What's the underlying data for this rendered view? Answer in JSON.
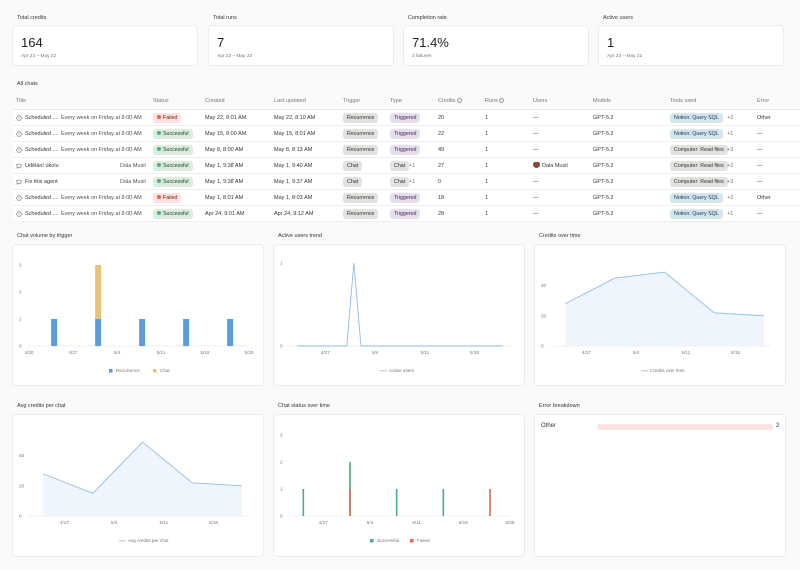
{
  "kpis": [
    {
      "label": "Total credits",
      "value": "164",
      "sub": "Apr 23 – May 22"
    },
    {
      "label": "Total runs",
      "value": "7",
      "sub": "Apr 23 – May 22"
    },
    {
      "label": "Completion rate",
      "value": "71.4%",
      "sub": "2 failures"
    },
    {
      "label": "Active users",
      "value": "1",
      "sub": "Apr 23 – May 22"
    }
  ],
  "table": {
    "section_title": "All chats",
    "headers": [
      "Title",
      "Status",
      "Created",
      "Last updated",
      "Trigger",
      "Type",
      "Credits",
      "Runs",
      "Users",
      "Models",
      "Tools used",
      "Error"
    ],
    "rows": [
      {
        "icon": "clock-icon",
        "title": "Scheduled ...",
        "desc": "Every week on Friday at 8:00 AM",
        "status": "Failed",
        "status_kind": "fail",
        "created": "May 22, 8:01 AM",
        "updated": "May 22, 8:10 AM",
        "trigger": "Recurrence",
        "type": "Triggered",
        "type_extra": "",
        "credits": "20",
        "runs": "1",
        "users": "—",
        "model": "GPT-5.2",
        "tool": "Notion: Query SQL",
        "tool_kind": "notion",
        "tool_extra": "+2",
        "error": "Other"
      },
      {
        "icon": "clock-icon",
        "title": "Scheduled ...",
        "desc": "Every week on Friday at 8:00 AM",
        "status": "Successful",
        "status_kind": "ok",
        "created": "May 15, 8:00 AM",
        "updated": "May 15, 8:01 AM",
        "trigger": "Recurrence",
        "type": "Triggered",
        "type_extra": "",
        "credits": "22",
        "runs": "1",
        "users": "—",
        "model": "GPT-5.2",
        "tool": "Notion: Query SQL",
        "tool_kind": "notion",
        "tool_extra": "+1",
        "error": "—"
      },
      {
        "icon": "clock-icon",
        "title": "Scheduled ...",
        "desc": "Every week on Friday at 8:00 AM",
        "status": "Successful",
        "status_kind": "ok",
        "created": "May 8, 8:00 AM",
        "updated": "May 8, 8:13 AM",
        "trigger": "Recurrence",
        "type": "Triggered",
        "type_extra": "",
        "credits": "49",
        "runs": "1",
        "users": "—",
        "model": "GPT-5.2",
        "tool": "Computer: Read files",
        "tool_kind": "comp",
        "tool_extra": "+3",
        "error": "—"
      },
      {
        "icon": "chat-icon",
        "title": "Udělání úkolu",
        "desc": "Dala Musil",
        "status": "Successful",
        "status_kind": "ok",
        "created": "May 1, 9:38 AM",
        "updated": "May 1, 9:40 AM",
        "trigger": "Chat",
        "type": "Chat",
        "type_extra": "+1",
        "credits": "27",
        "runs": "1",
        "users": "Dala Musil",
        "model": "GPT-5.2",
        "tool": "Computer: Read files",
        "tool_kind": "comp",
        "tool_extra": "+2",
        "error": "—"
      },
      {
        "icon": "chat-icon",
        "title": "Fix this agent",
        "desc": "Dala Musil",
        "status": "Successful",
        "status_kind": "ok",
        "created": "May 1, 9:38 AM",
        "updated": "May 1, 9:37 AM",
        "trigger": "Chat",
        "type": "Chat",
        "type_extra": "+1",
        "credits": "0",
        "runs": "1",
        "users": "—",
        "model": "GPT-5.2",
        "tool": "Computer: Read files",
        "tool_kind": "comp",
        "tool_extra": "+3",
        "error": "—"
      },
      {
        "icon": "clock-icon",
        "title": "Scheduled ...",
        "desc": "Every week on Friday at 8:00 AM",
        "status": "Failed",
        "status_kind": "fail",
        "created": "May 1, 8:01 AM",
        "updated": "May 1, 8:03 AM",
        "trigger": "Recurrence",
        "type": "Triggered",
        "type_extra": "",
        "credits": "18",
        "runs": "1",
        "users": "—",
        "model": "GPT-5.2",
        "tool": "Notion: Query SQL",
        "tool_kind": "notion",
        "tool_extra": "+2",
        "error": "Other"
      },
      {
        "icon": "clock-icon",
        "title": "Scheduled ...",
        "desc": "Every week on Friday at 8:00 AM",
        "status": "Successful",
        "status_kind": "ok",
        "created": "Apr 24, 9:01 AM",
        "updated": "Apr 24, 9:12 AM",
        "trigger": "Recurrence",
        "type": "Triggered",
        "type_extra": "",
        "credits": "28",
        "runs": "1",
        "users": "—",
        "model": "GPT-5.2",
        "tool": "Notion: Query SQL",
        "tool_kind": "notion",
        "tool_extra": "+1",
        "error": "—"
      }
    ]
  },
  "colors": {
    "recurrence": "#5b9be0",
    "chat": "#e8c377",
    "line": "#8fbde6",
    "successful": "#4caf7d",
    "failed": "#e06a55",
    "error_bar": "#fde4e0"
  },
  "chart_data": [
    {
      "id": "chat-volume",
      "title": "Chat volume by trigger",
      "type": "bar",
      "x_ticks": [
        "4/20",
        "4/27",
        "5/4",
        "5/11",
        "5/18",
        "5/25"
      ],
      "y_ticks": [
        "0",
        "1",
        "2",
        "3"
      ],
      "ylim": [
        0,
        3
      ],
      "categories": [
        "Apr 24",
        "May 1",
        "May 8",
        "May 15",
        "May 22"
      ],
      "series": [
        {
          "name": "Recurrence",
          "values": [
            1,
            1,
            1,
            1,
            1
          ]
        },
        {
          "name": "Chat",
          "values": [
            0,
            2,
            0,
            0,
            0
          ]
        }
      ]
    },
    {
      "id": "active-users",
      "title": "Active users trend",
      "type": "line",
      "x_ticks": [
        "4/27",
        "5/4",
        "5/11",
        "5/18"
      ],
      "y_ticks": [
        "0",
        "1"
      ],
      "ylim": [
        0,
        1
      ],
      "series": [
        {
          "name": "Active users",
          "x": [
            "Apr 23",
            "Apr 30",
            "May 1",
            "May 2",
            "May 22"
          ],
          "values": [
            0,
            0,
            1,
            0,
            0
          ]
        }
      ]
    },
    {
      "id": "credits-over-time",
      "title": "Credits over time",
      "type": "area",
      "x_ticks": [
        "4/27",
        "5/4",
        "5/11",
        "5/18"
      ],
      "y_ticks": [
        "0",
        "20",
        "40"
      ],
      "ylim": [
        0,
        55
      ],
      "series": [
        {
          "name": "Credits over time",
          "x": [
            "Apr 24",
            "May 1",
            "May 8",
            "May 15",
            "May 22"
          ],
          "values": [
            28,
            45,
            49,
            22,
            20
          ]
        }
      ]
    },
    {
      "id": "avg-credits",
      "title": "Avg credits per chat",
      "type": "area",
      "x_ticks": [
        "4/27",
        "5/4",
        "5/11",
        "5/18"
      ],
      "y_ticks": [
        "0",
        "20",
        "40"
      ],
      "ylim": [
        0,
        55
      ],
      "series": [
        {
          "name": "Avg credits per chat",
          "x": [
            "Apr 24",
            "May 1",
            "May 8",
            "May 15",
            "May 22"
          ],
          "values": [
            28,
            15,
            49,
            22,
            20
          ]
        }
      ]
    },
    {
      "id": "chat-status",
      "title": "Chat status over time",
      "type": "bar",
      "x_ticks": [
        "4/27",
        "5/4",
        "5/11",
        "5/18",
        "5/25"
      ],
      "y_ticks": [
        "0",
        "1",
        "2",
        "3"
      ],
      "ylim": [
        0,
        3
      ],
      "categories": [
        "Apr 24",
        "May 1",
        "May 8",
        "May 15",
        "May 22"
      ],
      "series": [
        {
          "name": "Successful",
          "values": [
            1,
            2,
            1,
            1,
            0
          ]
        },
        {
          "name": "Failed",
          "values": [
            0,
            1,
            0,
            0,
            1
          ]
        }
      ]
    }
  ],
  "error_breakdown": {
    "title": "Error breakdown",
    "items": [
      {
        "label": "Other",
        "value": 2,
        "fraction": 1.0
      }
    ]
  }
}
